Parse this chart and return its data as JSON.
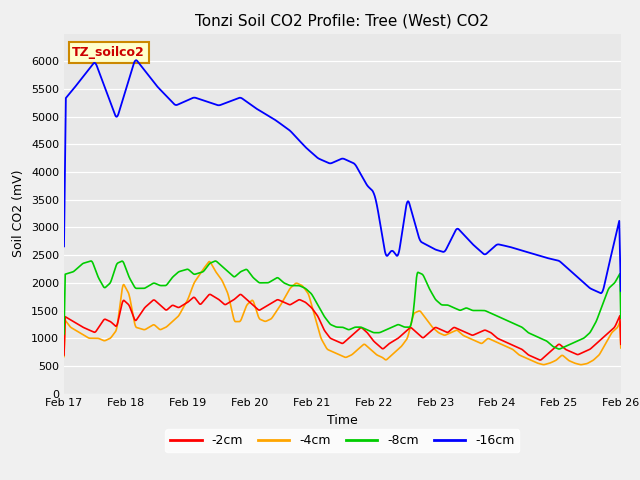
{
  "title": "Tonzi Soil CO2 Profile: Tree (West) CO2",
  "ylabel": "Soil CO2 (mV)",
  "xlabel": "Time",
  "watermark": "TZ_soilco2",
  "ylim": [
    0,
    6500
  ],
  "yticks": [
    0,
    500,
    1000,
    1500,
    2000,
    2500,
    3000,
    3500,
    4000,
    4500,
    5000,
    5500,
    6000
  ],
  "x_labels": [
    "Feb 17",
    "Feb 18",
    "Feb 19",
    "Feb 20",
    "Feb 21",
    "Feb 22",
    "Feb 23",
    "Feb 24",
    "Feb 25",
    "Feb 26"
  ],
  "colors": {
    "-2cm": "#ff0000",
    "-4cm": "#ffa500",
    "-8cm": "#00cc00",
    "-16cm": "#0000ff"
  },
  "bg_color": "#e8e8e8",
  "fig_bg_color": "#f0f0f0",
  "title_fontsize": 11,
  "label_fontsize": 9,
  "tick_fontsize": 8,
  "legend_fontsize": 9
}
